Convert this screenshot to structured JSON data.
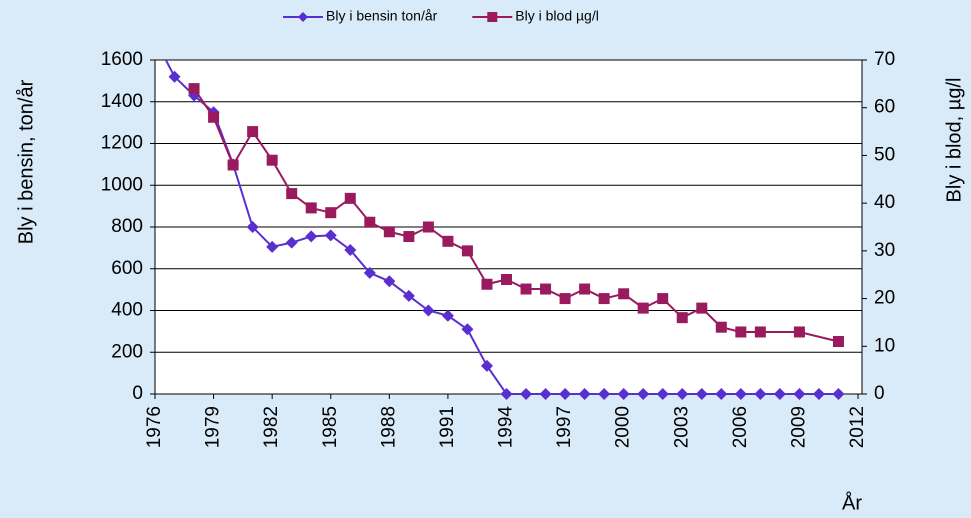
{
  "chart_data": {
    "type": "line",
    "xlabel": "År",
    "ylabel": "Bly i bensin, ton/år",
    "y2label": "Bly i blod, µg/l",
    "xlim": [
      1976,
      2012
    ],
    "xticks": [
      1976,
      1979,
      1982,
      1985,
      1988,
      1991,
      1994,
      1997,
      2000,
      2003,
      2006,
      2009,
      2012
    ],
    "ylim": [
      0,
      1600
    ],
    "yticks": [
      0,
      200,
      400,
      600,
      800,
      1000,
      1200,
      1400,
      1600
    ],
    "y2lim": [
      0,
      70
    ],
    "y2ticks": [
      0,
      10,
      20,
      30,
      40,
      50,
      60,
      70
    ],
    "grid": true,
    "legend": "top",
    "series": [
      {
        "name": "Bly i bensin ton/år",
        "color": "#5a2fd0",
        "marker": "diamond",
        "x": [
          1976,
          1977,
          1978,
          1979,
          1980,
          1981,
          1982,
          1983,
          1984,
          1985,
          1986,
          1987,
          1988,
          1989,
          1990,
          1991,
          1992,
          1993,
          1994,
          1995,
          1996,
          1997,
          1998,
          1999,
          2000,
          2001,
          2002,
          2003,
          2004,
          2005,
          2006,
          2007,
          2008,
          2009,
          2010,
          2011
        ],
        "values": [
          1700,
          1520,
          1430,
          1350,
          1100,
          800,
          705,
          725,
          755,
          760,
          690,
          580,
          540,
          470,
          400,
          375,
          310,
          135,
          0,
          0,
          0,
          0,
          0,
          0,
          0,
          0,
          0,
          0,
          0,
          0,
          0,
          0,
          0,
          0,
          0,
          0
        ]
      },
      {
        "name": "Bly i blod µg/l",
        "color": "#9a1a5e",
        "marker": "square",
        "axis": "y2",
        "x": [
          1978,
          1979,
          1980,
          1981,
          1982,
          1983,
          1984,
          1985,
          1986,
          1987,
          1988,
          1989,
          1990,
          1991,
          1992,
          1993,
          1994,
          1995,
          1996,
          1997,
          1998,
          1999,
          2000,
          2001,
          2002,
          2003,
          2004,
          2005,
          2006,
          2007,
          2009,
          2011
        ],
        "values": [
          64,
          58,
          48,
          55,
          49,
          42,
          39,
          38,
          41,
          36,
          34,
          33,
          35,
          32,
          30,
          23,
          24,
          22,
          22,
          20,
          22,
          20,
          21,
          18,
          20,
          16,
          18,
          14,
          13,
          13,
          13,
          11
        ]
      }
    ]
  }
}
